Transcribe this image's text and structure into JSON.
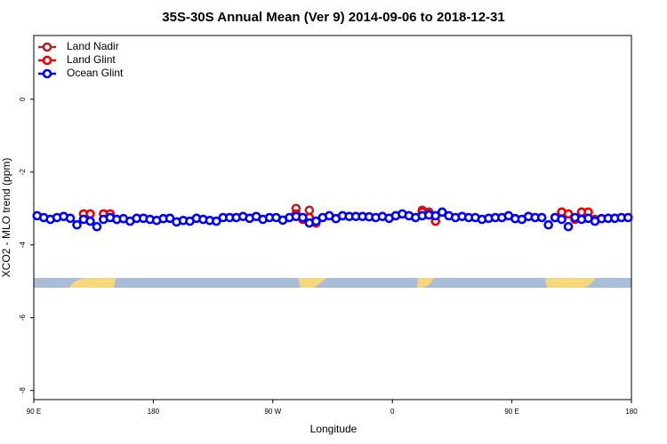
{
  "chart_data": {
    "type": "scatter",
    "title": "35S-30S Annual Mean (Ver 9)   2014-09-06 to 2018-12-31",
    "x_label": "Longitude",
    "y_label": "XCO2 - MLO trend (ppm)",
    "xlim": [
      90,
      540
    ],
    "ylim": [
      -8.25,
      1.75
    ],
    "xticks": [
      {
        "value": 90,
        "label": "90 E"
      },
      {
        "value": 180,
        "label": "180"
      },
      {
        "value": 270,
        "label": "90 W"
      },
      {
        "value": 360,
        "label": "0"
      },
      {
        "value": 450,
        "label": "90 E"
      },
      {
        "value": 540,
        "label": "180"
      }
    ],
    "yticks": [
      0,
      -2,
      -4,
      -6,
      -8
    ],
    "legend": "topleft",
    "series": [
      {
        "name": "Land Nadir",
        "color": "#a52a2a",
        "x": [
          147.5,
          287.5,
          297.5,
          382.5,
          387.5
        ],
        "values": [
          -3.25,
          -3.0,
          -3.05,
          -3.05,
          -3.1
        ]
      },
      {
        "name": "Land Glint",
        "color": "#ee0000",
        "x": [
          127.5,
          132.5,
          142.5,
          147.5,
          152.5,
          287.5,
          292.5,
          297.5,
          302.5,
          382.5,
          387.5,
          392.5,
          482.5,
          487.5,
          492.5,
          497.5,
          502.5,
          507.5,
          512.5
        ],
        "values": [
          -3.15,
          -3.15,
          -3.15,
          -3.15,
          -3.3,
          -3.15,
          -3.3,
          -3.25,
          -3.4,
          -3.1,
          -3.15,
          -3.35,
          -3.25,
          -3.1,
          -3.15,
          -3.3,
          -3.1,
          -3.1,
          -3.3
        ]
      },
      {
        "name": "Ocean Glint",
        "color": "#0000ff",
        "x": [
          92.5,
          97.5,
          102.5,
          107.5,
          112.5,
          117.5,
          122.5,
          127.5,
          132.5,
          137.5,
          142.5,
          147.5,
          152.5,
          157.5,
          162.5,
          167.5,
          172.5,
          177.5,
          182.5,
          187.5,
          192.5,
          197.5,
          202.5,
          207.5,
          212.5,
          217.5,
          222.5,
          227.5,
          232.5,
          237.5,
          242.5,
          247.5,
          252.5,
          257.5,
          262.5,
          267.5,
          272.5,
          277.5,
          282.5,
          287.5,
          292.5,
          297.5,
          302.5,
          307.5,
          312.5,
          317.5,
          322.5,
          327.5,
          332.5,
          337.5,
          342.5,
          347.5,
          352.5,
          357.5,
          362.5,
          367.5,
          372.5,
          377.5,
          382.5,
          387.5,
          392.5,
          397.5,
          402.5,
          407.5,
          412.5,
          417.5,
          422.5,
          427.5,
          432.5,
          437.5,
          442.5,
          447.5,
          452.5,
          457.5,
          462.5,
          467.5,
          472.5,
          477.5,
          482.5,
          487.5,
          492.5,
          497.5,
          502.5,
          507.5,
          512.5,
          517.5,
          522.5,
          527.5,
          532.5,
          537.5
        ],
        "values": [
          -3.2,
          -3.25,
          -3.3,
          -3.25,
          -3.22,
          -3.27,
          -3.45,
          -3.3,
          -3.35,
          -3.5,
          -3.3,
          -3.25,
          -3.3,
          -3.28,
          -3.35,
          -3.27,
          -3.27,
          -3.3,
          -3.33,
          -3.28,
          -3.27,
          -3.37,
          -3.33,
          -3.35,
          -3.27,
          -3.3,
          -3.33,
          -3.35,
          -3.25,
          -3.25,
          -3.25,
          -3.22,
          -3.27,
          -3.22,
          -3.3,
          -3.25,
          -3.25,
          -3.32,
          -3.25,
          -3.22,
          -3.25,
          -3.4,
          -3.35,
          -3.25,
          -3.2,
          -3.28,
          -3.2,
          -3.22,
          -3.22,
          -3.22,
          -3.23,
          -3.25,
          -3.22,
          -3.27,
          -3.2,
          -3.15,
          -3.2,
          -3.25,
          -3.2,
          -3.18,
          -3.2,
          -3.1,
          -3.2,
          -3.25,
          -3.22,
          -3.25,
          -3.25,
          -3.3,
          -3.27,
          -3.25,
          -3.25,
          -3.2,
          -3.28,
          -3.3,
          -3.22,
          -3.25,
          -3.25,
          -3.45,
          -3.25,
          -3.3,
          -3.5,
          -3.25,
          -3.3,
          -3.27,
          -3.35,
          -3.28,
          -3.27,
          -3.27,
          -3.25,
          -3.25
        ]
      }
    ]
  }
}
